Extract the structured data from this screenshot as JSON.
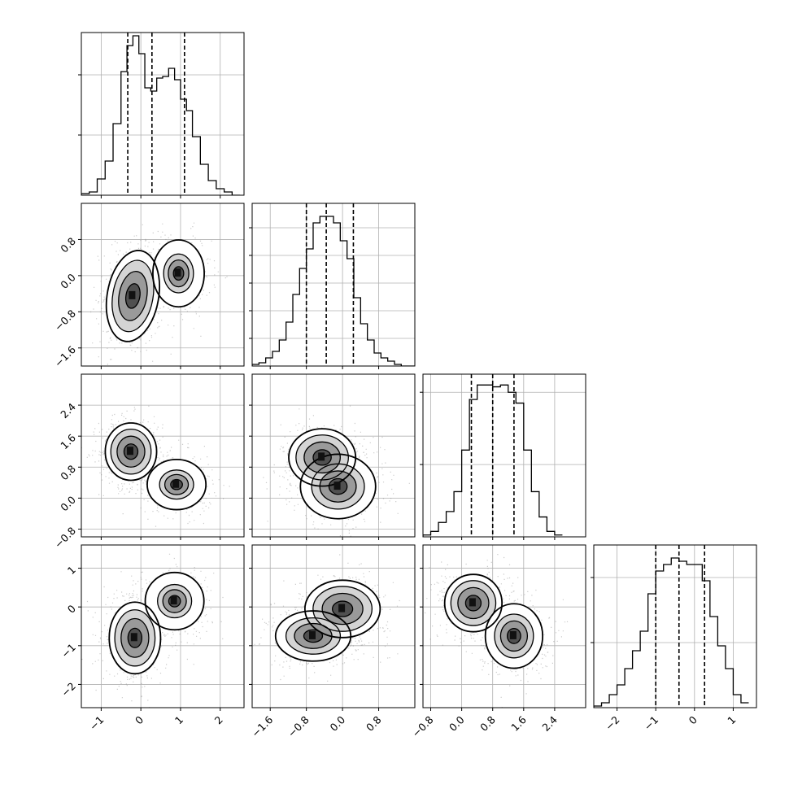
{
  "chart_data": {
    "type": "corner",
    "dimensions": 4,
    "colors": {
      "line": "#000000",
      "grid": "#b0b0b0",
      "scatter": "#8c8c8c",
      "background": "#ffffff"
    },
    "grid": true,
    "ranges": [
      [
        -1.5,
        2.6
      ],
      [
        -2.0,
        1.6
      ],
      [
        -1.0,
        3.2
      ],
      [
        -2.6,
        1.6
      ]
    ],
    "ticks": [
      {
        "values": [
          -1,
          0,
          1,
          2
        ],
        "labels": [
          "−1",
          "0",
          "1",
          "2"
        ]
      },
      {
        "values": [
          -1.6,
          -0.8,
          0.0,
          0.8
        ],
        "labels": [
          "−1.6",
          "−0.8",
          "0.0",
          "0.8"
        ]
      },
      {
        "values": [
          -0.8,
          0.0,
          0.8,
          1.6,
          2.4
        ],
        "labels": [
          "−0.8",
          "0.0",
          "0.8",
          "1.6",
          "2.4"
        ]
      },
      {
        "values": [
          -2,
          -1,
          0,
          1
        ],
        "labels": [
          "−2",
          "−1",
          "0",
          "1"
        ]
      }
    ],
    "quantiles": [
      [
        -0.33,
        0.28,
        1.1
      ],
      [
        -0.8,
        -0.36,
        0.24
      ],
      [
        0.25,
        0.8,
        1.35
      ],
      [
        -1.0,
        -0.4,
        0.26
      ]
    ],
    "histograms": [
      {
        "bin_edges": [
          -1.5,
          -1.3,
          -1.1,
          -0.9,
          -0.7,
          -0.5,
          -0.35,
          -0.2,
          -0.05,
          0.1,
          0.25,
          0.4,
          0.55,
          0.7,
          0.85,
          1.0,
          1.15,
          1.3,
          1.5,
          1.7,
          1.9,
          2.1,
          2.3,
          2.5
        ],
        "counts": [
          1,
          2,
          10,
          21,
          44,
          76,
          92,
          98,
          87,
          66,
          64,
          72,
          73,
          78,
          71,
          59,
          52,
          36,
          19,
          9,
          4,
          2,
          0
        ],
        "ymax": 100,
        "yticks": [
          37,
          74
        ]
      },
      {
        "bin_edges": [
          -2.0,
          -1.85,
          -1.7,
          -1.55,
          -1.4,
          -1.25,
          -1.1,
          -0.95,
          -0.8,
          -0.65,
          -0.5,
          -0.35,
          -0.2,
          -0.05,
          0.1,
          0.25,
          0.4,
          0.55,
          0.7,
          0.85,
          1.0,
          1.15,
          1.3,
          1.45,
          1.6
        ],
        "counts": [
          1,
          2,
          5,
          9,
          16,
          27,
          44,
          60,
          72,
          88,
          92,
          92,
          88,
          77,
          66,
          42,
          26,
          16,
          8,
          5,
          3,
          1,
          0,
          0
        ],
        "ymax": 100,
        "yticks": [
          17,
          34,
          51,
          68,
          85
        ]
      },
      {
        "bin_edges": [
          -1.0,
          -0.8,
          -0.6,
          -0.4,
          -0.2,
          0.0,
          0.2,
          0.4,
          0.6,
          0.8,
          1.0,
          1.2,
          1.4,
          1.6,
          1.8,
          2.0,
          2.2,
          2.4,
          2.6
        ],
        "counts": [
          1,
          3,
          8,
          14,
          25,
          48,
          76,
          84,
          84,
          83,
          84,
          80,
          74,
          48,
          25,
          11,
          3,
          1
        ],
        "ymax": 90,
        "yticks": [
          40,
          80
        ]
      },
      {
        "bin_edges": [
          -2.6,
          -2.4,
          -2.2,
          -2.0,
          -1.8,
          -1.6,
          -1.4,
          -1.2,
          -1.0,
          -0.8,
          -0.6,
          -0.4,
          -0.2,
          0.0,
          0.2,
          0.4,
          0.6,
          0.8,
          1.0,
          1.2,
          1.4
        ],
        "counts": [
          1,
          3,
          8,
          14,
          24,
          35,
          47,
          70,
          84,
          88,
          92,
          90,
          88,
          88,
          78,
          56,
          38,
          24,
          8,
          3
        ],
        "ymax": 100,
        "yticks": [
          40,
          80
        ]
      }
    ],
    "pairs": [
      {
        "row": 1,
        "col": 0,
        "modes": [
          {
            "cx": -0.2,
            "cy": -0.45,
            "rx": 0.35,
            "ry": 0.55,
            "rot": -10,
            "peak": 1.0
          },
          {
            "cx": 0.95,
            "cy": 0.05,
            "rx": 0.35,
            "ry": 0.4,
            "rot": 0,
            "peak": 0.55
          }
        ]
      },
      {
        "row": 2,
        "col": 0,
        "modes": [
          {
            "cx": -0.25,
            "cy": 1.2,
            "rx": 0.35,
            "ry": 0.4,
            "rot": 0,
            "peak": 1.0
          },
          {
            "cx": 0.9,
            "cy": 0.35,
            "rx": 0.4,
            "ry": 0.35,
            "rot": 0,
            "peak": 0.55
          }
        ]
      },
      {
        "row": 2,
        "col": 1,
        "modes": [
          {
            "cx": -0.45,
            "cy": 1.05,
            "rx": 0.4,
            "ry": 0.4,
            "rot": 0,
            "peak": 1.0
          },
          {
            "cx": -0.1,
            "cy": 0.3,
            "rx": 0.45,
            "ry": 0.45,
            "rot": 0,
            "peak": 0.8
          }
        ]
      },
      {
        "row": 3,
        "col": 0,
        "modes": [
          {
            "cx": -0.15,
            "cy": -0.8,
            "rx": 0.35,
            "ry": 0.5,
            "rot": 0,
            "peak": 1.0
          },
          {
            "cx": 0.85,
            "cy": 0.15,
            "rx": 0.4,
            "ry": 0.4,
            "rot": 0,
            "peak": 0.55
          }
        ]
      },
      {
        "row": 3,
        "col": 1,
        "modes": [
          {
            "cx": -0.65,
            "cy": -0.75,
            "rx": 0.45,
            "ry": 0.35,
            "rot": 0,
            "peak": 0.85
          },
          {
            "cx": 0.0,
            "cy": -0.05,
            "rx": 0.45,
            "ry": 0.4,
            "rot": 0,
            "peak": 1.0
          }
        ]
      },
      {
        "row": 3,
        "col": 2,
        "modes": [
          {
            "cx": 0.3,
            "cy": 0.1,
            "rx": 0.4,
            "ry": 0.4,
            "rot": 0,
            "peak": 1.0
          },
          {
            "cx": 1.35,
            "cy": -0.75,
            "rx": 0.4,
            "ry": 0.45,
            "rot": 0,
            "peak": 0.75
          }
        ]
      }
    ]
  }
}
